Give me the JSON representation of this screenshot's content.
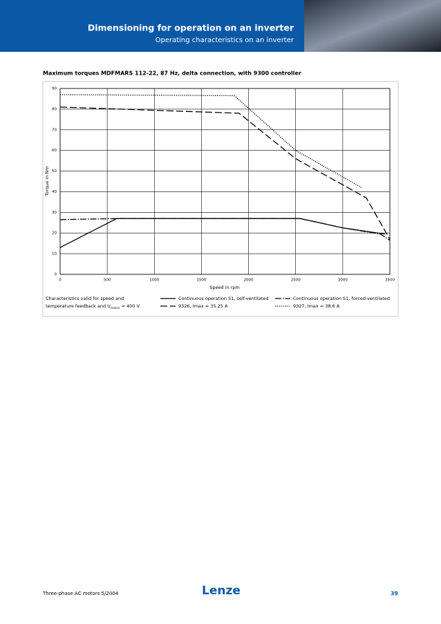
{
  "header": {
    "title": "Dimensioning for operation on an inverter",
    "subtitle": "Operating characteristics on an inverter"
  },
  "chart_data": {
    "type": "line",
    "title": "Maximum torques MDFMARS 112-22, 87 Hz, delta connection, with 9300 controller",
    "x_label": "Speed in rpm",
    "y_label": "Torque in Nm",
    "xlim": [
      0,
      3500
    ],
    "xticks": [
      0,
      500,
      1000,
      1500,
      2000,
      2500,
      3000,
      3500
    ],
    "ylim": [
      0,
      90
    ],
    "yticks": [
      0,
      10,
      20,
      30,
      40,
      50,
      60,
      70,
      80,
      90
    ],
    "grid": true,
    "series": [
      {
        "name": "Continuous operation S1, self-ventilated",
        "color": "#000000",
        "style": "solid",
        "x": [
          0,
          600,
          2550,
          3000,
          3450
        ],
        "values": [
          13,
          27,
          27,
          22.5,
          19.5
        ]
      },
      {
        "name": "Continuous operation S1, forced-ventilated",
        "color": "#000000",
        "style": "dashdot",
        "x": [
          0,
          600,
          2550,
          3000,
          3400,
          3500
        ],
        "values": [
          26.5,
          27,
          27,
          22.5,
          19.5,
          16.5
        ]
      },
      {
        "name": "9326, Imax = 35.25 A",
        "color": "#000000",
        "style": "dashed",
        "x": [
          0,
          1900,
          2500,
          3250,
          3500
        ],
        "values": [
          81,
          78,
          56,
          37,
          17
        ]
      },
      {
        "name": "9327, Imax = 38.6 A",
        "color": "#000000",
        "style": "dotted",
        "x": [
          0,
          1850,
          2500,
          3200
        ],
        "values": [
          87,
          86.5,
          60,
          42
        ]
      }
    ],
    "note": {
      "line1": "Characteristics valid for speed and",
      "line2": "temperature feedback and U",
      "subscript": "mains",
      "line2_end": "= 400 V"
    }
  },
  "footer": {
    "text": "Three-phase AC motors 5/2004",
    "logo": "Lenze",
    "page": "39"
  }
}
